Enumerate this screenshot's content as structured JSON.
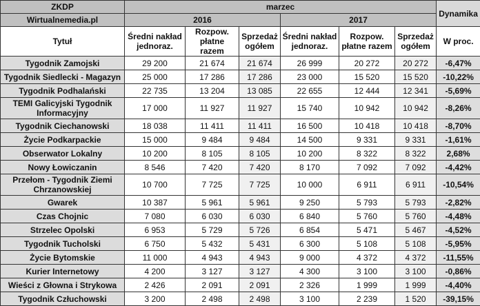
{
  "header": {
    "source": "ZKDP",
    "publisher": "Wirtualnemedia.pl",
    "month": "marzec",
    "year1": "2016",
    "year2": "2017",
    "dynamics": "Dynamika",
    "title_col": "Tytuł",
    "col_avg": "Średni nakład jednoraz.",
    "col_paid": "Rozpow. płatne razem",
    "col_sales": "Sprzedaż ogółem",
    "col_pct": "W proc."
  },
  "rows": [
    [
      "Tygodnik Zamojski",
      "29 200",
      "21 674",
      "21 674",
      "26 999",
      "20 272",
      "20 272",
      "-6,47%"
    ],
    [
      "Tygodnik Siedlecki - Magazyn",
      "25 000",
      "17 286",
      "17 286",
      "23 000",
      "15 520",
      "15 520",
      "-10,22%"
    ],
    [
      "Tygodnik Podhalański",
      "22 735",
      "13 204",
      "13 085",
      "22 655",
      "12 444",
      "12 341",
      "-5,69%"
    ],
    [
      "TEMI Galicyjski Tygodnik Informacyjny",
      "17 000",
      "11 927",
      "11 927",
      "15 740",
      "10 942",
      "10 942",
      "-8,26%"
    ],
    [
      "Tygodnik Ciechanowski",
      "18 038",
      "11 411",
      "11 411",
      "16 500",
      "10 418",
      "10 418",
      "-8,70%"
    ],
    [
      "Życie Podkarpackie",
      "15 000",
      "9 484",
      "9 484",
      "14 500",
      "9 331",
      "9 331",
      "-1,61%"
    ],
    [
      "Obserwator Lokalny",
      "10 200",
      "8 105",
      "8 105",
      "10 200",
      "8 322",
      "8 322",
      "2,68%"
    ],
    [
      "Nowy Łowiczanin",
      "8 546",
      "7 420",
      "7 420",
      "8 170",
      "7 092",
      "7 092",
      "-4,42%"
    ],
    [
      "Przełom - Tygodnik Ziemi Chrzanowskiej",
      "10 700",
      "7 725",
      "7 725",
      "10 000",
      "6 911",
      "6 911",
      "-10,54%"
    ],
    [
      "Gwarek",
      "10 387",
      "5 961",
      "5 961",
      "9 250",
      "5 793",
      "5 793",
      "-2,82%"
    ],
    [
      "Czas Chojnic",
      "7 080",
      "6 030",
      "6 030",
      "6 840",
      "5 760",
      "5 760",
      "-4,48%"
    ],
    [
      "Strzelec Opolski",
      "6 953",
      "5 729",
      "5 726",
      "6 854",
      "5 471",
      "5 467",
      "-4,52%"
    ],
    [
      "Tygodnik Tucholski",
      "6 750",
      "5 432",
      "5 431",
      "6 300",
      "5 108",
      "5 108",
      "-5,95%"
    ],
    [
      "Życie Bytomskie",
      "11 000",
      "4 943",
      "4 943",
      "9 000",
      "4 372",
      "4 372",
      "-11,55%"
    ],
    [
      "Kurier Internetowy",
      "4 200",
      "3 127",
      "3 127",
      "4 300",
      "3 100",
      "3 100",
      "-0,86%"
    ],
    [
      "Wieści z Głowna i Strykowa",
      "2 426",
      "2 091",
      "2 091",
      "2 326",
      "1 999",
      "1 999",
      "-4,40%"
    ],
    [
      "Tygodnik Człuchowski",
      "3 200",
      "2 498",
      "2 498",
      "3 100",
      "2 239",
      "1 520",
      "-39,15%"
    ]
  ]
}
